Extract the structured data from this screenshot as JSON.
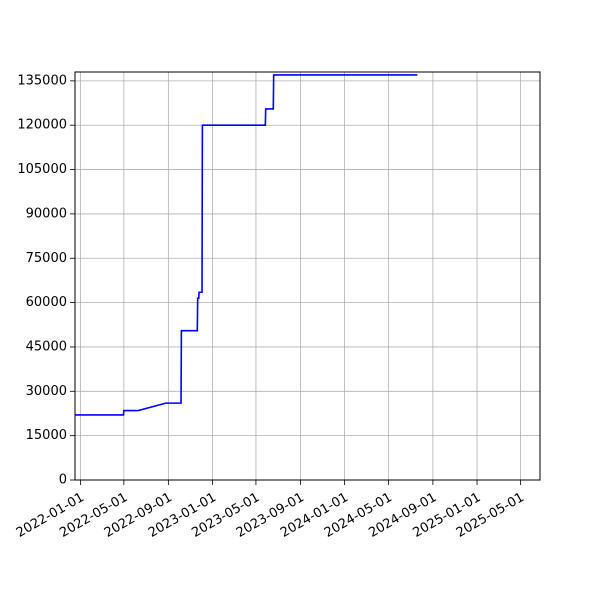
{
  "chart_data": {
    "type": "line",
    "title": "",
    "xlabel": "",
    "ylabel": "",
    "x_axis": "date",
    "xlim": [
      "2021-12-17",
      "2025-06-24"
    ],
    "ylim": [
      0,
      138000
    ],
    "grid": true,
    "legend": "none",
    "x_ticks": [
      "2022-01-01",
      "2022-05-01",
      "2022-09-01",
      "2023-01-01",
      "2023-05-01",
      "2023-09-01",
      "2024-01-01",
      "2024-05-01",
      "2024-09-01",
      "2025-01-01",
      "2025-05-01"
    ],
    "y_ticks": [
      0,
      15000,
      30000,
      45000,
      60000,
      75000,
      90000,
      105000,
      120000,
      135000
    ],
    "series": [
      {
        "color": "#0000ff",
        "points": [
          {
            "x": "2021-12-17",
            "y": 22000
          },
          {
            "x": "2022-04-30",
            "y": 22000
          },
          {
            "x": "2022-05-01",
            "y": 23500
          },
          {
            "x": "2022-06-10",
            "y": 23500
          },
          {
            "x": "2022-08-25",
            "y": 26000
          },
          {
            "x": "2022-10-06",
            "y": 26000
          },
          {
            "x": "2022-10-07",
            "y": 50500
          },
          {
            "x": "2022-11-20",
            "y": 50500
          },
          {
            "x": "2022-11-21",
            "y": 61500
          },
          {
            "x": "2022-11-24",
            "y": 61500
          },
          {
            "x": "2022-11-25",
            "y": 63500
          },
          {
            "x": "2022-12-03",
            "y": 63500
          },
          {
            "x": "2022-12-04",
            "y": 120000
          },
          {
            "x": "2023-05-27",
            "y": 120000
          },
          {
            "x": "2023-05-28",
            "y": 125500
          },
          {
            "x": "2023-06-18",
            "y": 125500
          },
          {
            "x": "2023-06-19",
            "y": 137000
          },
          {
            "x": "2024-07-20",
            "y": 137000
          }
        ]
      }
    ]
  }
}
